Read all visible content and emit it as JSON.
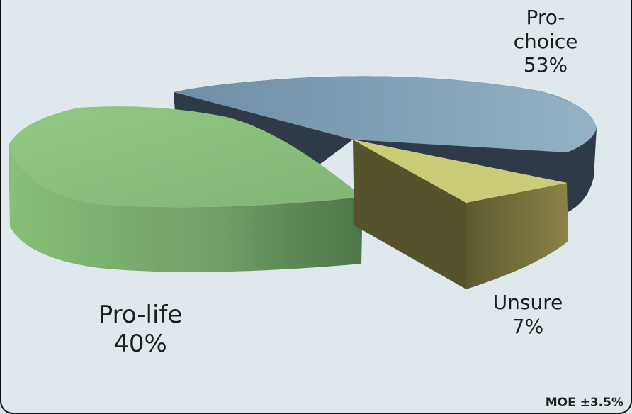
{
  "chart_data": {
    "type": "pie",
    "title": "",
    "slices": [
      {
        "label": "Pro-choice",
        "value": 53,
        "value_label": "53%",
        "color": "#7f9fb5",
        "side_color": "#2f3a49"
      },
      {
        "label": "Pro-life",
        "value": 40,
        "value_label": "40%",
        "color": "#8ec37f",
        "side_color": "#5a8a52"
      },
      {
        "label": "Unsure",
        "value": 7,
        "value_label": "7%",
        "color": "#cbcc77",
        "side_color": "#59552c"
      }
    ],
    "label_lines": {
      "pro_choice": [
        "Pro-",
        "choice"
      ]
    },
    "note": "MOE ±3.5%"
  }
}
